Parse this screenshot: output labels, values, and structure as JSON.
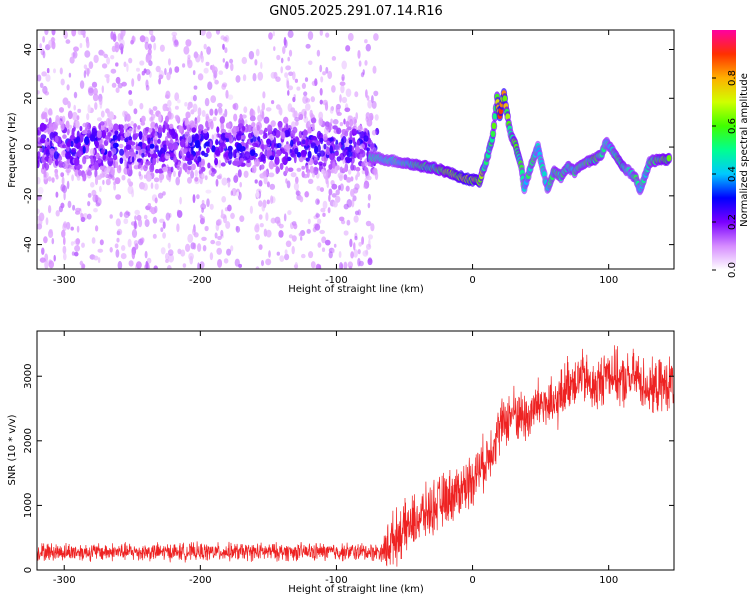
{
  "title": "GN05.2025.291.07.14.R16",
  "colors": {
    "snr_line": "#ee2222",
    "background": "#ffffff",
    "axis": "#000000"
  },
  "chart_data": [
    {
      "type": "heatmap",
      "name": "spectrogram",
      "xlabel": "Height of straight line (km)",
      "ylabel": "Frequency (Hz)",
      "xlim": [
        -320,
        148
      ],
      "ylim": [
        -50,
        48
      ],
      "x_ticks": [
        -300,
        -200,
        -100,
        0,
        100
      ],
      "y_ticks": [
        -40,
        -20,
        0,
        20,
        40
      ],
      "colorbar": {
        "label": "Normalized spectral amplitude",
        "range": [
          0,
          1
        ],
        "ticks": [
          "0.0",
          "0.2",
          "0.4",
          "0.6",
          "0.8"
        ],
        "colormap": "rainbow"
      },
      "noise_region": {
        "x_range": [
          -320,
          -70
        ],
        "center_freq": 0,
        "band_halfwidth": 10,
        "max_amplitude": 0.25
      },
      "ridge": [
        {
          "x": -75,
          "y": -4,
          "a": 0.45
        },
        {
          "x": -65,
          "y": -5,
          "a": 0.45
        },
        {
          "x": -55,
          "y": -6,
          "a": 0.45
        },
        {
          "x": -45,
          "y": -7,
          "a": 0.5
        },
        {
          "x": -35,
          "y": -8,
          "a": 0.55
        },
        {
          "x": -25,
          "y": -9,
          "a": 0.55
        },
        {
          "x": -15,
          "y": -11,
          "a": 0.6
        },
        {
          "x": -5,
          "y": -13,
          "a": 0.7
        },
        {
          "x": 5,
          "y": -14,
          "a": 0.65
        },
        {
          "x": 10,
          "y": -6,
          "a": 0.5
        },
        {
          "x": 15,
          "y": 5,
          "a": 0.55
        },
        {
          "x": 18,
          "y": 20,
          "a": 0.6
        },
        {
          "x": 20,
          "y": 13,
          "a": 0.8
        },
        {
          "x": 23,
          "y": 22,
          "a": 0.75
        },
        {
          "x": 28,
          "y": 5,
          "a": 0.5
        },
        {
          "x": 32,
          "y": 0,
          "a": 0.6
        },
        {
          "x": 36,
          "y": -8,
          "a": 0.5
        },
        {
          "x": 38,
          "y": -17,
          "a": 0.45
        },
        {
          "x": 44,
          "y": -6,
          "a": 0.5
        },
        {
          "x": 48,
          "y": 0,
          "a": 0.45
        },
        {
          "x": 52,
          "y": -10,
          "a": 0.45
        },
        {
          "x": 55,
          "y": -17,
          "a": 0.45
        },
        {
          "x": 60,
          "y": -10,
          "a": 0.5
        },
        {
          "x": 65,
          "y": -12,
          "a": 0.5
        },
        {
          "x": 70,
          "y": -8,
          "a": 0.5
        },
        {
          "x": 75,
          "y": -10,
          "a": 0.5
        },
        {
          "x": 80,
          "y": -7,
          "a": 0.5
        },
        {
          "x": 85,
          "y": -6,
          "a": 0.5
        },
        {
          "x": 90,
          "y": -5,
          "a": 0.55
        },
        {
          "x": 95,
          "y": -3,
          "a": 0.5
        },
        {
          "x": 98,
          "y": 2,
          "a": 0.45
        },
        {
          "x": 105,
          "y": -3,
          "a": 0.5
        },
        {
          "x": 110,
          "y": -8,
          "a": 0.55
        },
        {
          "x": 115,
          "y": -10,
          "a": 0.45
        },
        {
          "x": 120,
          "y": -13,
          "a": 0.5
        },
        {
          "x": 123,
          "y": -18,
          "a": 0.45
        },
        {
          "x": 130,
          "y": -6,
          "a": 0.5
        },
        {
          "x": 138,
          "y": -5,
          "a": 0.55
        },
        {
          "x": 145,
          "y": -5,
          "a": 0.6
        }
      ]
    },
    {
      "type": "line",
      "name": "snr",
      "xlabel": "Height of straight line (km)",
      "ylabel": "SNR (10 * v/v)",
      "xlim": [
        -320,
        148
      ],
      "ylim": [
        0,
        3700
      ],
      "x_ticks": [
        -300,
        -200,
        -100,
        0,
        100
      ],
      "y_ticks": [
        0,
        1000,
        2000,
        3000
      ],
      "trend": [
        {
          "x": -320,
          "y": 280
        },
        {
          "x": -65,
          "y": 280
        },
        {
          "x": -60,
          "y": 450
        },
        {
          "x": -40,
          "y": 800
        },
        {
          "x": -20,
          "y": 1100
        },
        {
          "x": -5,
          "y": 1300
        },
        {
          "x": 10,
          "y": 1700
        },
        {
          "x": 20,
          "y": 2200
        },
        {
          "x": 30,
          "y": 2450
        },
        {
          "x": 40,
          "y": 2350
        },
        {
          "x": 50,
          "y": 2600
        },
        {
          "x": 60,
          "y": 2500
        },
        {
          "x": 70,
          "y": 2900
        },
        {
          "x": 80,
          "y": 3000
        },
        {
          "x": 90,
          "y": 2800
        },
        {
          "x": 100,
          "y": 3100
        },
        {
          "x": 110,
          "y": 2900
        },
        {
          "x": 120,
          "y": 3000
        },
        {
          "x": 130,
          "y": 2800
        },
        {
          "x": 148,
          "y": 2900
        }
      ],
      "noise_amplitude_low": 140,
      "noise_amplitude_high": 420
    }
  ]
}
